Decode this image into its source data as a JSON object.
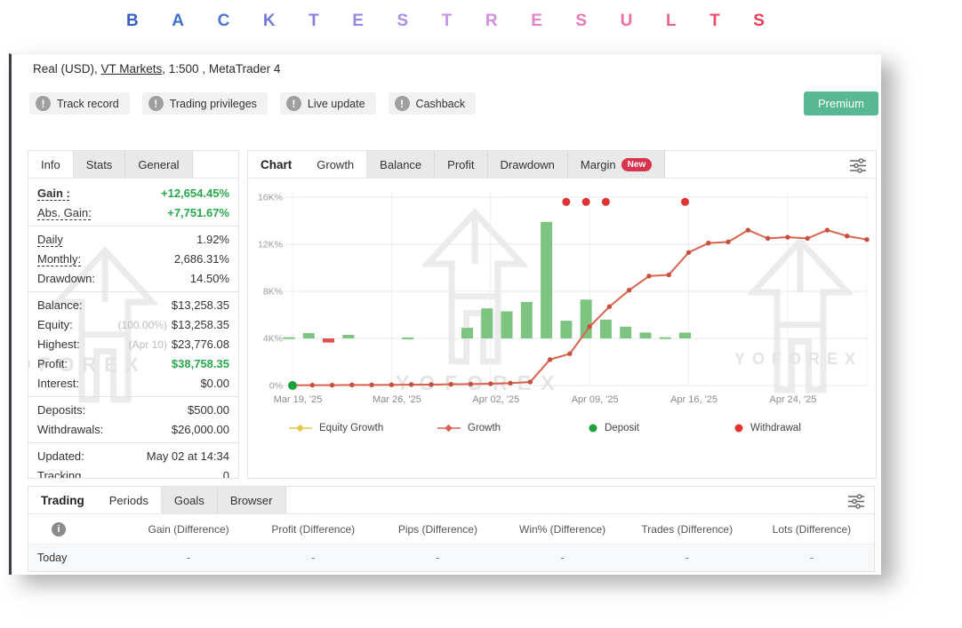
{
  "title": {
    "text": "BACKTEST RESULTS",
    "letters": [
      {
        "ch": "B",
        "color": "#3a60c6"
      },
      {
        "ch": "A",
        "color": "#406ed2"
      },
      {
        "ch": "C",
        "color": "#4f74d2"
      },
      {
        "ch": "K",
        "color": "#6e7ad8"
      },
      {
        "ch": "T",
        "color": "#8381dd"
      },
      {
        "ch": "E",
        "color": "#9489e1"
      },
      {
        "ch": "S",
        "color": "#a98fe5"
      },
      {
        "ch": "T",
        "color": "#c195e9"
      },
      {
        "ch": "R",
        "color": "#d190dd"
      },
      {
        "ch": "E",
        "color": "#de85c9"
      },
      {
        "ch": "S",
        "color": "#e77bb4"
      },
      {
        "ch": "U",
        "color": "#ec6d9f"
      },
      {
        "ch": "L",
        "color": "#ef5e88"
      },
      {
        "ch": "T",
        "color": "#ee4c6e"
      },
      {
        "ch": "S",
        "color": "#eb3a55"
      }
    ]
  },
  "header": {
    "account_prefix": "Real (USD), ",
    "account_link": "VT Markets",
    "account_suffix": ", 1:500 , MetaTrader 4",
    "badges": [
      "Track record",
      "Trading privileges",
      "Live update",
      "Cashback"
    ],
    "premium_label": "Premium",
    "premium_color": "#57b893"
  },
  "info_panel": {
    "tabs": [
      {
        "label": "Info",
        "active": true
      },
      {
        "label": "Stats",
        "active": false
      },
      {
        "label": "General",
        "active": false
      }
    ],
    "rows": [
      {
        "label": "Gain :",
        "value": "+12,654.45%",
        "green": true,
        "bold": true,
        "underline": true
      },
      {
        "label": "Abs. Gain:",
        "value": "+7,751.67%",
        "green": true,
        "underline": true
      },
      {
        "label": "Daily",
        "value": "1.92%",
        "underline": true,
        "divider": true
      },
      {
        "label": "Monthly:",
        "value": "2,686.31%",
        "underline": true
      },
      {
        "label": "Drawdown:",
        "value": "14.50%"
      },
      {
        "label": "Balance:",
        "value": "$13,258.35",
        "divider": true
      },
      {
        "label": "Equity:",
        "prefix": "(100.00%)",
        "value": "$13,258.35"
      },
      {
        "label": "Highest:",
        "prefix": "(Apr 10)",
        "value": "$23,776.08"
      },
      {
        "label": "Profit:",
        "value": "$38,758.35",
        "green": true
      },
      {
        "label": "Interest:",
        "value": "$0.00"
      },
      {
        "label": "Deposits:",
        "value": "$500.00",
        "divider": true
      },
      {
        "label": "Withdrawals:",
        "value": "$26,000.00"
      },
      {
        "label": "Updated:",
        "value": "May 02 at 14:34",
        "divider": true
      },
      {
        "label": "Tracking",
        "value": "0"
      }
    ]
  },
  "chart_panel": {
    "label": "Chart",
    "tabs": [
      {
        "label": "Growth",
        "active": true
      },
      {
        "label": "Balance",
        "active": false
      },
      {
        "label": "Profit",
        "active": false
      },
      {
        "label": "Drawdown",
        "active": false
      },
      {
        "label": "Margin",
        "active": false,
        "badge": "New"
      }
    ]
  },
  "chart_data": {
    "type": "mixed",
    "x_unit": "trading days starting Mar 19 2025",
    "x_tick_days": [
      0,
      5,
      10,
      15,
      20,
      25
    ],
    "x_tick_labels": [
      "Mar 19, '25",
      "Mar 26, '25",
      "Apr 02, '25",
      "Apr 09, '25",
      "Apr 16, '25",
      "Apr 24, '25"
    ],
    "y_ticks": [
      0,
      4000,
      8000,
      12000,
      16000
    ],
    "y_tick_labels": [
      "0%",
      "4K%",
      "8K%",
      "12K%",
      "16K%"
    ],
    "ylim": [
      0,
      17000
    ],
    "grid": true,
    "series": [
      {
        "name": "Growth",
        "type": "line",
        "color": "#d9634e",
        "marker_color": "#c94f3d",
        "unit": "%",
        "points": [
          [
            0,
            20
          ],
          [
            1,
            30
          ],
          [
            2,
            30
          ],
          [
            3,
            50
          ],
          [
            4,
            50
          ],
          [
            5,
            60
          ],
          [
            6,
            80
          ],
          [
            7,
            80
          ],
          [
            8,
            100
          ],
          [
            9,
            120
          ],
          [
            10,
            150
          ],
          [
            11,
            200
          ],
          [
            12,
            300
          ],
          [
            13,
            2200
          ],
          [
            14,
            2700
          ],
          [
            15,
            5000
          ],
          [
            16,
            6700
          ],
          [
            17,
            8100
          ],
          [
            18,
            9300
          ],
          [
            19,
            9400
          ],
          [
            20,
            11300
          ],
          [
            21,
            12100
          ],
          [
            22,
            12200
          ],
          [
            23,
            13200
          ],
          [
            24,
            12500
          ],
          [
            25,
            12600
          ],
          [
            26,
            12500
          ],
          [
            27,
            13200
          ],
          [
            28,
            12700
          ],
          [
            29,
            12400
          ]
        ]
      },
      {
        "name": "Daily Gain",
        "type": "bar",
        "color_positive": "#7cc47f",
        "color_negative": "#e0534f",
        "baseline_axis_value": 4000,
        "note": "bars rendered from the 4K% gridline; height is the daily gain in %",
        "points": [
          [
            0,
            100
          ],
          [
            1,
            450
          ],
          [
            2,
            -350
          ],
          [
            3,
            300
          ],
          [
            6,
            80
          ],
          [
            9,
            900
          ],
          [
            10,
            2550
          ],
          [
            11,
            2300
          ],
          [
            12,
            3100
          ],
          [
            13,
            9900
          ],
          [
            14,
            1500
          ],
          [
            15,
            3300
          ],
          [
            16,
            1600
          ],
          [
            17,
            1000
          ],
          [
            18,
            500
          ],
          [
            19,
            100
          ],
          [
            20,
            500
          ]
        ]
      },
      {
        "name": "Deposit",
        "type": "scatter",
        "color": "#1ba23c",
        "points": [
          [
            0,
            0
          ]
        ]
      },
      {
        "name": "Withdrawal",
        "type": "scatter",
        "color": "#e23330",
        "points": [
          [
            14,
            15600
          ],
          [
            15,
            15600
          ],
          [
            16,
            15600
          ],
          [
            20,
            15600
          ]
        ]
      }
    ]
  },
  "legend": [
    {
      "label": "Equity Growth",
      "type": "line",
      "color": "#e8c44a"
    },
    {
      "label": "Growth",
      "type": "line",
      "color": "#d9634e"
    },
    {
      "label": "Deposit",
      "type": "dot",
      "color": "#1ba23c"
    },
    {
      "label": "Withdrawal",
      "type": "dot",
      "color": "#e23330"
    }
  ],
  "bottom_panel": {
    "label": "Trading",
    "tabs": [
      {
        "label": "Periods",
        "active": true
      },
      {
        "label": "Goals",
        "active": false
      },
      {
        "label": "Browser",
        "active": false
      }
    ],
    "columns": [
      "Gain (Difference)",
      "Profit (Difference)",
      "Pips (Difference)",
      "Win% (Difference)",
      "Trades (Difference)",
      "Lots (Difference)"
    ],
    "rows": [
      {
        "label": "Today",
        "values": [
          "-",
          "-",
          "-",
          "-",
          "-",
          "-"
        ]
      }
    ]
  },
  "watermark": {
    "text": "YOFOREX"
  }
}
